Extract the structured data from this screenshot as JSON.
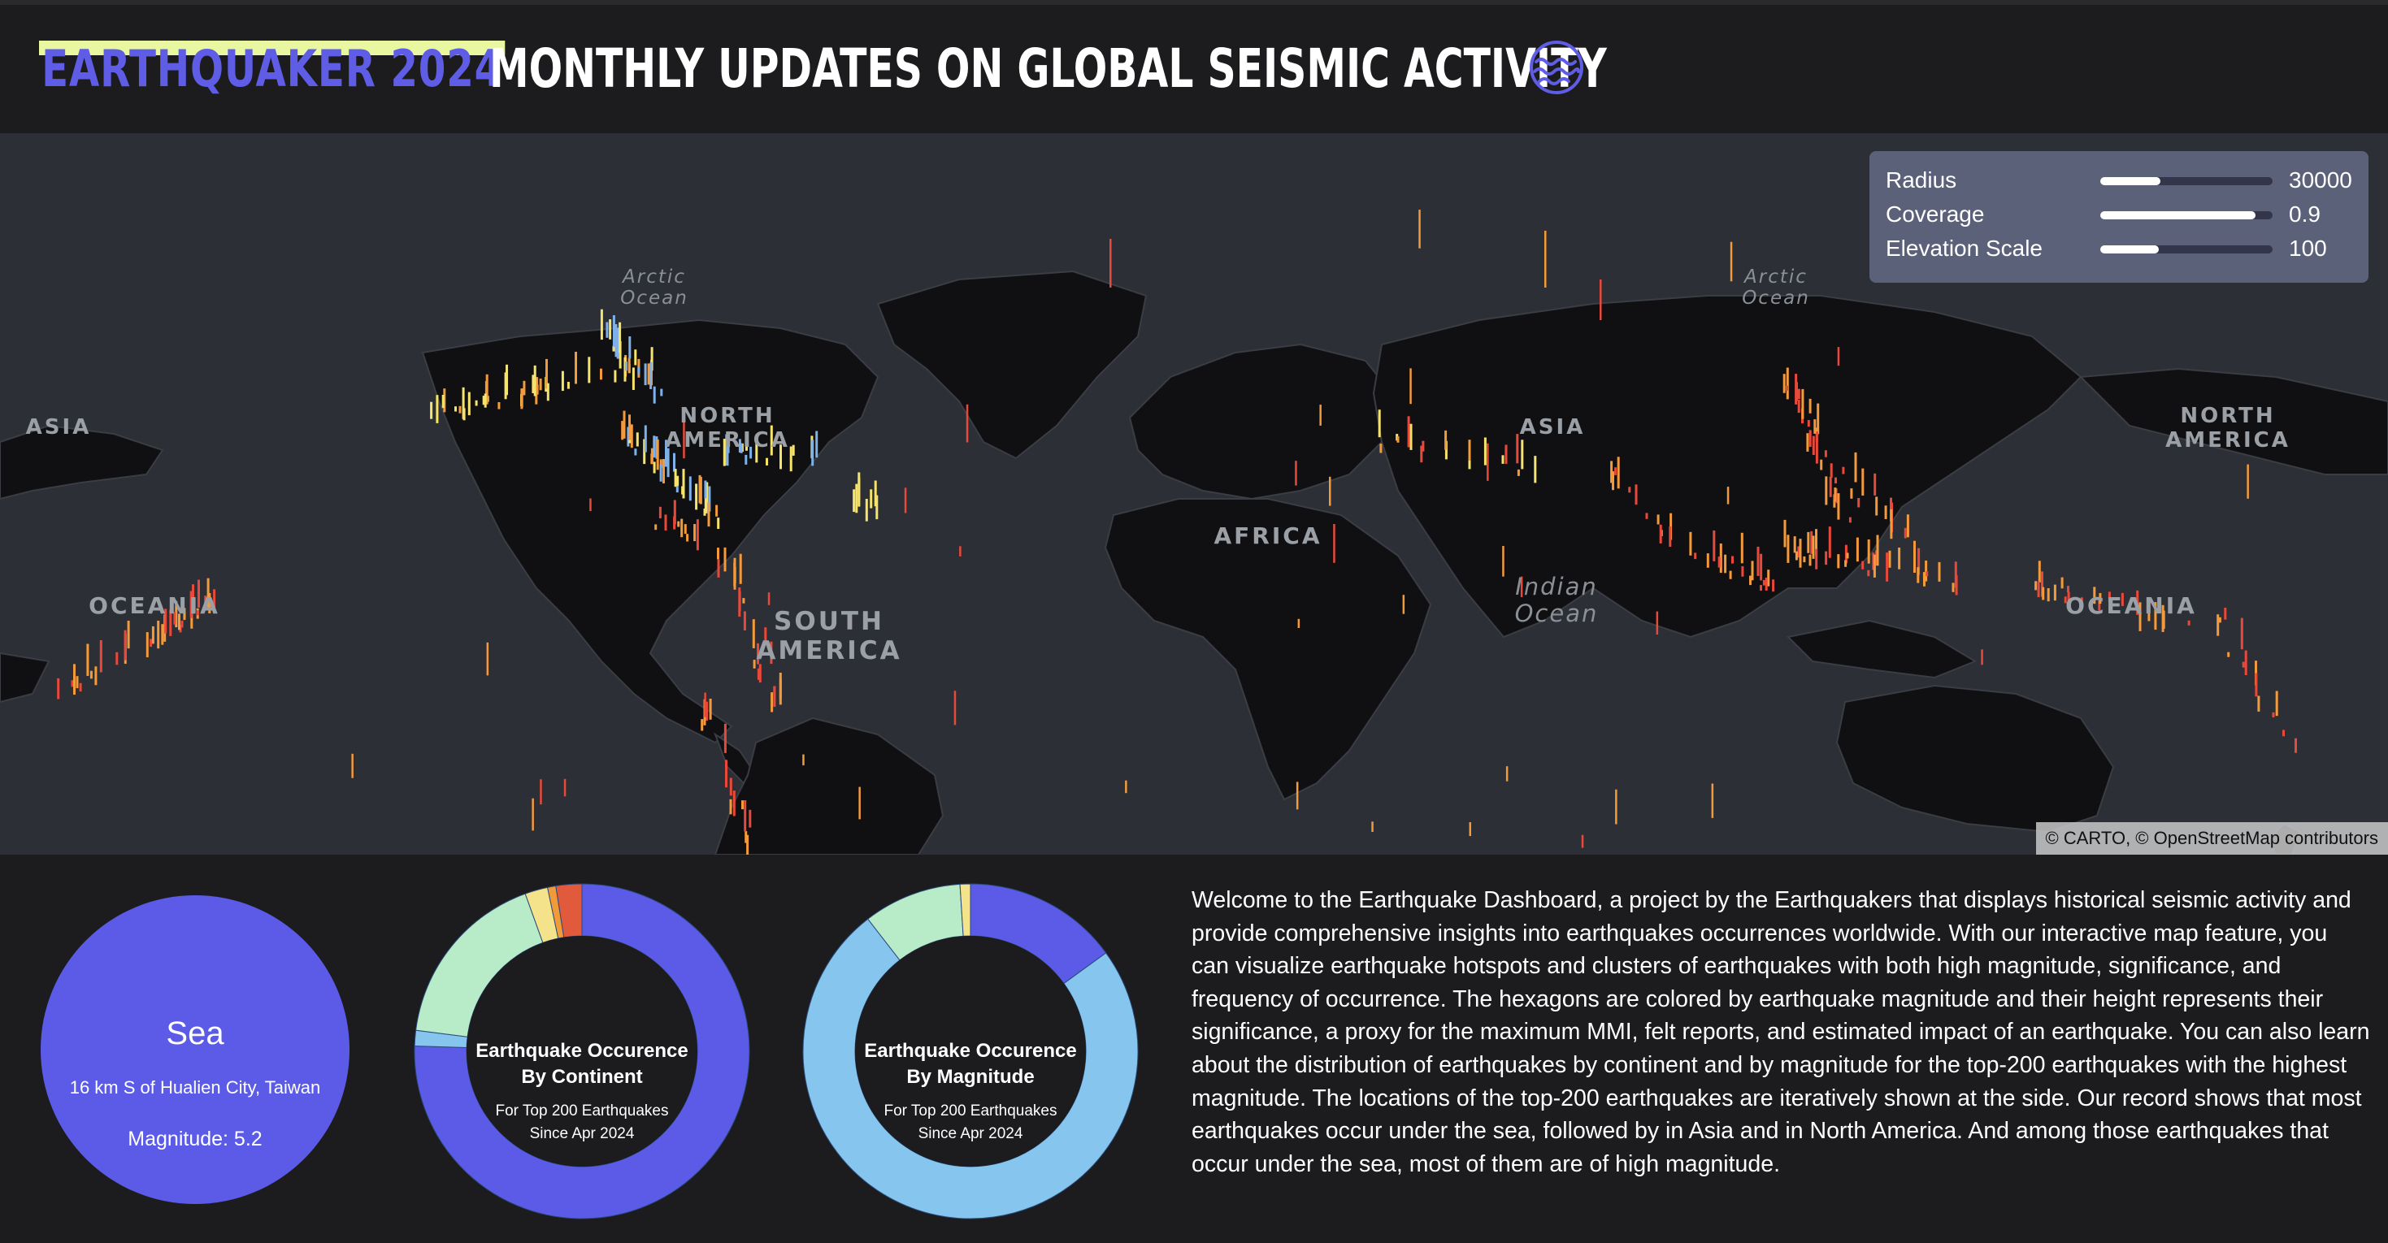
{
  "header": {
    "brand": "EARTHQUAKER 2024",
    "headline": "MONTHLY UPDATES ON GLOBAL SEISMIC ACTIVITY",
    "logo_icon": "wave-globe-icon",
    "brand_color": "#5f5ce6",
    "brand_highlight": "#e9f7a0"
  },
  "map": {
    "labels": {
      "arctic_west": "Arctic\nOcean",
      "arctic_east": "Arctic\nOcean",
      "asia_west": "ASIA",
      "north_america": "NORTH\nAMERICA",
      "asia": "ASIA",
      "north_america_east": "NORTH\nAMERICA",
      "africa": "AFRICA",
      "indian_ocean": "Indian\nOcean",
      "south_america": "SOUTH\nAMERICA",
      "oceania_west": "OCEANIA",
      "oceania_east": "OCEANIA"
    },
    "attribution": "© CARTO, © OpenStreetMap contributors",
    "colors": {
      "land": "#101012",
      "water": "#2c2f35",
      "low": "#f5e36b",
      "mid": "#f39a3c",
      "high": "#e8493a",
      "cool": "#7fb0e8"
    }
  },
  "controls": [
    {
      "label": "Radius",
      "value": "30000",
      "level": 0.35
    },
    {
      "label": "Coverage",
      "value": "0.9",
      "level": 0.9
    },
    {
      "label": "Elevation Scale",
      "value": "100",
      "level": 0.34
    }
  ],
  "info_card": {
    "title": "Sea",
    "place": "16 km S of Hualien City, Taiwan",
    "magnitude": "Magnitude: 5.2",
    "color": "#5b5be8"
  },
  "continent_chart": {
    "title_line1": "Earthquake Occurence",
    "title_line2": "By Continent",
    "sub_line1": "For Top 200 Earthquakes",
    "sub_line2": "Since Apr 2024",
    "segments": [
      {
        "share": 0.755,
        "color": "#5b5be8"
      },
      {
        "share": 0.015,
        "color": "#86c6ee"
      },
      {
        "share": 0.175,
        "color": "#b8ecc9"
      },
      {
        "share": 0.022,
        "color": "#f4e38a"
      },
      {
        "share": 0.008,
        "color": "#f19a3a"
      },
      {
        "share": 0.025,
        "color": "#e25a3c"
      }
    ]
  },
  "magnitude_chart": {
    "title_line1": "Earthquake Occurence",
    "title_line2": "By Magnitude",
    "sub_line1": "For Top 200 Earthquakes",
    "sub_line2": "Since Apr 2024",
    "segments": [
      {
        "share": 0.15,
        "color": "#5b5be8"
      },
      {
        "share": 0.745,
        "color": "#86c6ee"
      },
      {
        "share": 0.095,
        "color": "#b8ecc9"
      },
      {
        "share": 0.01,
        "color": "#f4e38a"
      }
    ]
  },
  "description": "Welcome to the Earthquake Dashboard, a project by the Earthquakers that displays historical seismic activity and provide comprehensive insights into earthquakes occurrences worldwide. With our interactive map feature, you can visualize earthquake hotspots and clusters of earthquakes with both high magnitude, significance, and frequency of occurrence. The hexagons are colored by earthquake magnitude and their height represents their significance, a proxy for the maximum MMI, felt reports, and estimated impact of an earthquake. You can also learn about the distribution of earthquakes by continent and by magnitude for the top-200 earthquakes with the highest magnitude. The locations of the top-200 earthquakes are iteratively shown at the side. Our record shows that most earthquakes occur under the sea, followed by in Asia and in North America. And among those earthquakes that occur under the sea, most of them are of high magnitude."
}
